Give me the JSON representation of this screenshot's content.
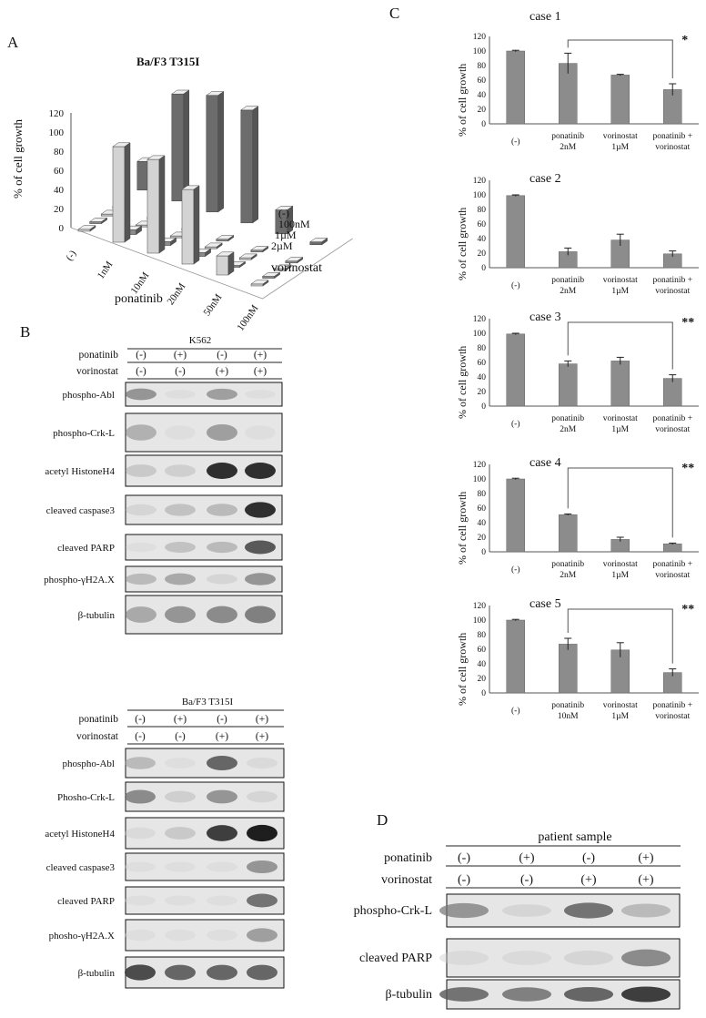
{
  "panel_labels": {
    "A": "A",
    "B": "B",
    "C": "C",
    "D": "D"
  },
  "chart_data": [
    {
      "type": "bar",
      "panel": "A",
      "title": "Ba/F3 T315I",
      "ylabel": "% of cell growth",
      "xlabel": "ponatinib",
      "zlabel": "vorinostat",
      "categories": [
        "(-)",
        "1nM",
        "10nM",
        "20nM",
        "50nM",
        "100nM"
      ],
      "yticks": [
        "0",
        "20",
        "40",
        "60",
        "80",
        "100",
        "120"
      ],
      "ylim": [
        0,
        120
      ],
      "series": [
        {
          "name": "(-)",
          "values": [
            2,
            100,
            98,
            78,
            20,
            2
          ]
        },
        {
          "name": "100nM",
          "values": [
            2,
            5,
            4,
            4,
            2,
            2
          ]
        },
        {
          "name": "1µM",
          "values": [
            2,
            2,
            2,
            2,
            2,
            2
          ]
        },
        {
          "name": "2µM",
          "values": [
            2,
            2,
            2,
            2,
            2,
            2
          ]
        }
      ],
      "back_series_values": [
        30,
        112,
        122,
        118,
        25,
        3
      ],
      "colors": {
        "light": "#d3d3d3",
        "dark": "#6c6c6c"
      }
    },
    {
      "type": "bar",
      "panel": "C",
      "title": "case 1",
      "ylabel": "% of cell growth",
      "categories": [
        "(-)",
        "ponatinib 2nM",
        "vorinostat 1µM",
        "ponatinib + vorinostat"
      ],
      "values": [
        100,
        83,
        67,
        47
      ],
      "errors": [
        1,
        14,
        1,
        8
      ],
      "ylim": [
        0,
        120
      ],
      "yticks": [
        "0",
        "20",
        "40",
        "60",
        "80",
        "100",
        "120"
      ],
      "significance": {
        "from": 1,
        "to": 3,
        "label": "*"
      }
    },
    {
      "type": "bar",
      "panel": "C",
      "title": "case 2",
      "ylabel": "% of cell growth",
      "categories": [
        "(-)",
        "ponatinib 2nM",
        "vorinostat 1µM",
        "ponatinib + vorinostat"
      ],
      "values": [
        99,
        22,
        38,
        19
      ],
      "errors": [
        1,
        5,
        8,
        4
      ],
      "ylim": [
        0,
        120
      ],
      "yticks": [
        "0",
        "20",
        "40",
        "60",
        "80",
        "100",
        "120"
      ],
      "significance": null
    },
    {
      "type": "bar",
      "panel": "C",
      "title": "case 3",
      "ylabel": "% of cell growth",
      "categories": [
        "(-)",
        "ponatinib 2nM",
        "vorinostat 1µM",
        "ponatinib + vorinostat"
      ],
      "values": [
        99,
        58,
        62,
        38
      ],
      "errors": [
        1,
        4,
        5,
        5
      ],
      "ylim": [
        0,
        120
      ],
      "yticks": [
        "0",
        "20",
        "40",
        "60",
        "80",
        "100",
        "120"
      ],
      "significance": {
        "from": 1,
        "to": 3,
        "label": "**"
      }
    },
    {
      "type": "bar",
      "panel": "C",
      "title": "case 4",
      "ylabel": "% of cell growth",
      "categories": [
        "(-)",
        "ponatinib 2nM",
        "vorinostat 1µM",
        "ponatinib + vorinostat"
      ],
      "values": [
        100,
        51,
        17,
        11
      ],
      "errors": [
        1,
        1,
        3,
        1
      ],
      "ylim": [
        0,
        120
      ],
      "yticks": [
        "0",
        "20",
        "40",
        "60",
        "80",
        "100",
        "120"
      ],
      "significance": {
        "from": 1,
        "to": 3,
        "label": "**"
      }
    },
    {
      "type": "bar",
      "panel": "C",
      "title": "case 5",
      "ylabel": "% of cell growth",
      "categories": [
        "(-)",
        "ponatinib 10nM",
        "vorinostat 1µM",
        "ponatinib + vorinostat"
      ],
      "values": [
        100,
        67,
        59,
        28
      ],
      "errors": [
        1,
        8,
        10,
        5
      ],
      "ylim": [
        0,
        120
      ],
      "yticks": [
        "0",
        "20",
        "40",
        "60",
        "80",
        "100",
        "120"
      ],
      "significance": {
        "from": 1,
        "to": 3,
        "label": "**"
      }
    }
  ],
  "blot_k562": {
    "title": "K562",
    "row_labels": [
      "ponatinib",
      "vorinostat"
    ],
    "treatments": [
      [
        "(-)",
        "(+)",
        "(-)",
        "(+)"
      ],
      [
        "(-)",
        "(-)",
        "(+)",
        "(+)"
      ]
    ],
    "bands": [
      {
        "label": "phospho-Abl",
        "intensity": [
          0.55,
          0.05,
          0.5,
          0.05
        ]
      },
      {
        "label": "phospho-Crk-L",
        "intensity": [
          0.4,
          0.05,
          0.5,
          0.05
        ]
      },
      {
        "label": "acetyl HistoneH4",
        "intensity": [
          0.25,
          0.2,
          0.95,
          0.95
        ]
      },
      {
        "label": "cleaved caspase3",
        "intensity": [
          0.15,
          0.3,
          0.35,
          0.95
        ]
      },
      {
        "label": "cleaved PARP",
        "intensity": [
          0.05,
          0.3,
          0.35,
          0.8
        ]
      },
      {
        "label": "phospho-γH2A.X",
        "intensity": [
          0.35,
          0.45,
          0.15,
          0.55
        ]
      },
      {
        "label": "β-tubulin",
        "intensity": [
          0.45,
          0.55,
          0.6,
          0.65
        ]
      }
    ]
  },
  "blot_baf3": {
    "title": "Ba/F3 T315I",
    "row_labels": [
      "ponatinib",
      "vorinostat"
    ],
    "treatments": [
      [
        "(-)",
        "(+)",
        "(-)",
        "(+)"
      ],
      [
        "(-)",
        "(-)",
        "(+)",
        "(+)"
      ]
    ],
    "bands": [
      {
        "label": "phospho-Abl",
        "intensity": [
          0.35,
          0.05,
          0.75,
          0.1
        ]
      },
      {
        "label": "Phosho-Crk-L",
        "intensity": [
          0.6,
          0.2,
          0.55,
          0.15
        ]
      },
      {
        "label": "acetyl HistoneH4",
        "intensity": [
          0.1,
          0.25,
          0.9,
          1.0
        ]
      },
      {
        "label": "cleaved caspase3",
        "intensity": [
          0.05,
          0.05,
          0.05,
          0.55
        ]
      },
      {
        "label": "cleaved PARP",
        "intensity": [
          0.05,
          0.05,
          0.05,
          0.7
        ]
      },
      {
        "label": "phosho-γH2A.X",
        "intensity": [
          0.05,
          0.05,
          0.05,
          0.5
        ]
      },
      {
        "label": "β-tubulin",
        "intensity": [
          0.85,
          0.75,
          0.75,
          0.75
        ]
      }
    ]
  },
  "blot_patient": {
    "title": "patient sample",
    "row_labels": [
      "ponatinib",
      "vorinostat"
    ],
    "treatments": [
      [
        "(-)",
        "(+)",
        "(-)",
        "(+)"
      ],
      [
        "(-)",
        "(-)",
        "(+)",
        "(+)"
      ]
    ],
    "bands": [
      {
        "label": "phospho-Crk-L",
        "intensity": [
          0.55,
          0.15,
          0.7,
          0.35
        ]
      },
      {
        "label": "cleaved PARP",
        "intensity": [
          0.1,
          0.1,
          0.15,
          0.6
        ]
      },
      {
        "label": "β-tubulin",
        "intensity": [
          0.7,
          0.65,
          0.75,
          0.9
        ]
      }
    ]
  }
}
